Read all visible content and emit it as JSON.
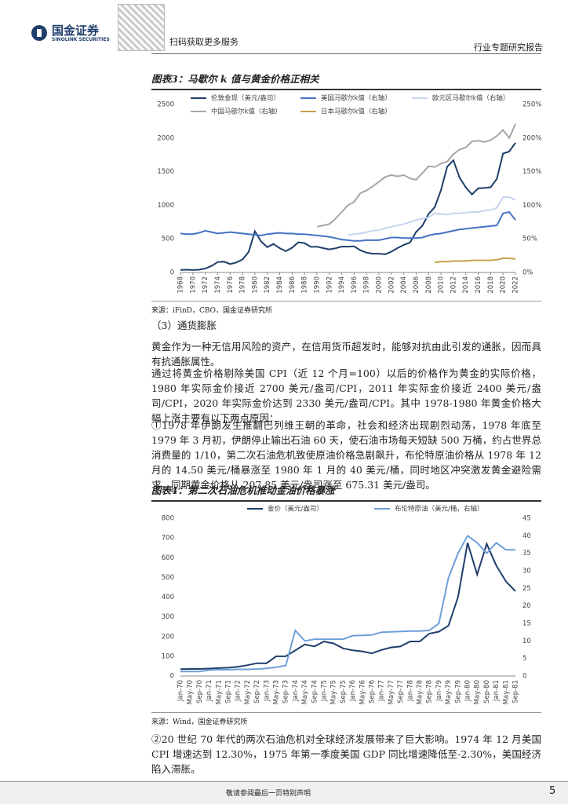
{
  "header": {
    "logo_cn": "国金证券",
    "logo_en": "SINOLINK SECURITIES",
    "qr_text": "扫码获取更多服务",
    "report_type": "行业专题研究报告"
  },
  "figure3": {
    "title": "图表3：马歇尔 k 值与黄金价格正相关",
    "source": "来源：iFinD，CBO，国金证券研究所"
  },
  "section": "（3）通货膨胀",
  "paragraphs": [
    "黄金作为一种无信用风险的资产，在信用货币超发时，能够对抗由此引发的通胀，因而具有抗通胀属性。",
    "通过将黄金价格剔除美国 CPI（近 12 个月=100）以后的价格作为黄金的实际价格，1980 年实际金价接近 2700 美元/盎司/CPI，2011 年实际金价接近 2400 美元/盎司/CPI，2020 年实际金价达到 2330 美元/盎司/CPI。其中 1978-1980 年黄金价格大幅上涨主要有以下两点原因：",
    "①1978 年伊朗发生推翻巴列维王朝的革命，社会和经济出现剧烈动荡，1978 年底至 1979 年 3 月初，伊朗停止输出石油 60 天，使石油市场每天短缺 500 万桶，约占世界总消费量的 1/10，第二次石油危机致使原油价格急剧飙升，布伦特原油价格从 1978 年 12 月的 14.50 美元/桶暴涨至 1980 年 1 月的 40 美元/桶，同时地区冲突激发黄金避险需求，同期黄金价格从 207.85 美元/盎司涨至 675.31 美元/盎司。"
  ],
  "figure4": {
    "title": "图表4：第二次石油危机推动金油价格暴涨",
    "source": "来源：Wind，国金证券研究所"
  },
  "paragraph_after": "②20 世纪 70 年代的两次石油危机对全球经济发展带来了巨大影响。1974 年 12 月美国 CPI 增速达到 12.30%，1975 年第一季度美国 GDP 同比增速降低至-2.30%，美国经济陷入滞胀。",
  "footer": {
    "disclaimer": "敬请参阅最后一页特别声明",
    "page": "5"
  },
  "chart_data": [
    {
      "type": "line",
      "x": [
        1968,
        1969,
        1970,
        1971,
        1972,
        1973,
        1974,
        1975,
        1976,
        1977,
        1978,
        1979,
        1980,
        1981,
        1982,
        1983,
        1984,
        1985,
        1986,
        1987,
        1988,
        1989,
        1990,
        1991,
        1992,
        1993,
        1994,
        1995,
        1996,
        1997,
        1998,
        1999,
        2000,
        2001,
        2002,
        2003,
        2004,
        2005,
        2006,
        2007,
        2008,
        2009,
        2010,
        2011,
        2012,
        2013,
        2014,
        2015,
        2016,
        2017,
        2018,
        2019,
        2020,
        2021,
        2022
      ],
      "xlim": [
        1968,
        2022
      ],
      "xticks": [
        1968,
        1970,
        1972,
        1974,
        1976,
        1978,
        1980,
        1982,
        1984,
        1986,
        1988,
        1990,
        1992,
        1994,
        1996,
        1998,
        2000,
        2002,
        2004,
        2006,
        2008,
        2010,
        2012,
        2014,
        2016,
        2018,
        2020,
        2022
      ],
      "ylim": [
        0,
        2500
      ],
      "yticks": [
        0,
        500,
        1000,
        1500,
        2000,
        2500
      ],
      "y2lim": [
        0,
        250
      ],
      "y2ticks": [
        {
          "value": 0,
          "label": "0%"
        },
        {
          "value": 50,
          "label": "50%"
        },
        {
          "value": 100,
          "label": "100%"
        },
        {
          "value": 150,
          "label": "150%"
        },
        {
          "value": 200,
          "label": "200%"
        },
        {
          "value": 250,
          "label": "250%"
        }
      ],
      "grid": false,
      "series": [
        {
          "name": "伦敦金现（美元/盎司）",
          "color": "#1f3d6b",
          "values": [
            38,
            41,
            36,
            41,
            58,
            97,
            154,
            161,
            125,
            148,
            193,
            306,
            612,
            460,
            376,
            424,
            361,
            317,
            368,
            447,
            437,
            381,
            383,
            362,
            344,
            360,
            384,
            384,
            388,
            331,
            294,
            279,
            279,
            271,
            310,
            363,
            410,
            445,
            604,
            695,
            872,
            972,
            1225,
            1572,
            1669,
            1411,
            1266,
            1160,
            1251,
            1257,
            1268,
            1393,
            1770,
            1799,
            1930
          ]
        },
        {
          "name": "美国马歇尔k值（右轴）",
          "color": "#4472c4",
          "axis": "y2",
          "values": [
            58,
            57,
            57,
            59,
            62,
            60,
            58,
            59,
            60,
            59,
            58,
            57,
            56,
            55,
            57,
            58,
            59,
            58,
            58,
            57,
            57,
            56,
            55,
            54,
            53,
            51,
            49,
            48,
            47,
            47,
            48,
            48,
            48,
            50,
            52,
            52,
            51,
            51,
            51,
            52,
            55,
            57,
            58,
            60,
            62,
            64,
            65,
            66,
            67,
            68,
            69,
            70,
            88,
            90,
            78
          ]
        },
        {
          "name": "欧元区马歇尔k值（右轴）",
          "color": "#c5d5ef",
          "axis": "y2",
          "values": [
            null,
            null,
            null,
            null,
            null,
            null,
            null,
            null,
            null,
            null,
            null,
            null,
            null,
            null,
            null,
            null,
            null,
            null,
            null,
            null,
            null,
            null,
            null,
            null,
            null,
            null,
            null,
            56,
            57,
            58,
            60,
            62,
            63,
            66,
            68,
            70,
            72,
            75,
            78,
            80,
            82,
            88,
            87,
            86,
            88,
            88,
            89,
            90,
            90,
            92,
            93,
            96,
            112,
            112,
            108
          ]
        },
        {
          "name": "中国马歇尔k值（右轴）",
          "color": "#a6a6a6",
          "axis": "y2",
          "values": [
            null,
            null,
            null,
            null,
            null,
            null,
            null,
            null,
            null,
            null,
            null,
            null,
            null,
            null,
            null,
            null,
            null,
            null,
            null,
            null,
            null,
            null,
            68,
            70,
            72,
            80,
            90,
            100,
            105,
            118,
            122,
            128,
            135,
            142,
            145,
            143,
            145,
            140,
            138,
            148,
            158,
            157,
            162,
            165,
            176,
            183,
            186,
            195,
            196,
            194,
            197,
            203,
            212,
            200,
            221
          ]
        },
        {
          "name": "日本马歇尔k值（右轴）",
          "color": "#c9a14a",
          "axis": "y2",
          "values": [
            null,
            null,
            null,
            null,
            null,
            null,
            null,
            null,
            null,
            null,
            null,
            null,
            null,
            null,
            null,
            null,
            null,
            null,
            null,
            null,
            null,
            null,
            null,
            null,
            null,
            null,
            null,
            null,
            null,
            null,
            null,
            null,
            null,
            null,
            null,
            null,
            null,
            null,
            null,
            null,
            null,
            15,
            16,
            16,
            17,
            17,
            17,
            18,
            18,
            18,
            18,
            19,
            21,
            21,
            20
          ]
        }
      ]
    },
    {
      "type": "line",
      "categories": [
        "Jan-70",
        "May-70",
        "Sep-70",
        "Jan-71",
        "May-71",
        "Sep-71",
        "Jan-72",
        "May-72",
        "Sep-72",
        "Jan-73",
        "May-73",
        "Sep-73",
        "Jan-74",
        "May-74",
        "Sep-74",
        "Jan-75",
        "May-75",
        "Sep-75",
        "Jan-76",
        "May-76",
        "Sep-76",
        "Jan-77",
        "May-77",
        "Sep-77",
        "Jan-78",
        "May-78",
        "Sep-78",
        "Jan-79",
        "May-79",
        "Sep-79",
        "Jan-80",
        "May-80",
        "Sep-80",
        "Jan-81",
        "May-81",
        "Sep-81"
      ],
      "ylim": [
        0,
        800
      ],
      "yticks": [
        0,
        100,
        200,
        300,
        400,
        500,
        600,
        700,
        800
      ],
      "y2lim": [
        0,
        45
      ],
      "y2ticks": [
        0,
        5,
        10,
        15,
        20,
        25,
        30,
        35,
        40,
        45
      ],
      "grid": false,
      "series": [
        {
          "name": "金价（美元/盎司）",
          "color": "#1f3d6b",
          "values": [
            35,
            36,
            36,
            38,
            40,
            42,
            47,
            55,
            65,
            65,
            100,
            100,
            130,
            160,
            150,
            175,
            165,
            140,
            130,
            125,
            115,
            132,
            145,
            150,
            175,
            175,
            215,
            225,
            255,
            400,
            675,
            515,
            670,
            560,
            480,
            430
          ]
        },
        {
          "name": "布伦特原油（美元/桶，右轴）",
          "color": "#6f9fd8",
          "axis": "y2",
          "values": [
            1.3,
            1.3,
            1.3,
            1.7,
            1.8,
            1.8,
            1.9,
            1.9,
            2.0,
            2.2,
            2.5,
            3.0,
            13,
            10,
            10.5,
            10.5,
            10.5,
            10.5,
            11.5,
            11.6,
            11.7,
            12.5,
            12.6,
            12.7,
            12.8,
            12.8,
            13,
            15,
            28,
            35,
            40,
            38,
            35,
            38,
            36,
            36
          ]
        }
      ]
    }
  ]
}
